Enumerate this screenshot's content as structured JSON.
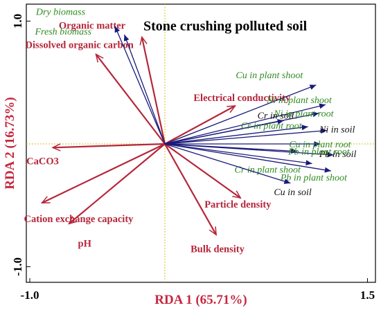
{
  "chart_data": {
    "type": "biplot",
    "title": "Stone crushing polluted soil",
    "xlabel": "RDA 1 (65.71%)",
    "ylabel": "RDA 2 (16.73%)",
    "xlim": [
      -1.0,
      1.5
    ],
    "ylim": [
      -1.0,
      1.0
    ],
    "x_ticks": [
      -1.0,
      1.5
    ],
    "y_ticks": [
      1.0,
      -1.0
    ],
    "colors": {
      "environment": "#b5263a",
      "response_arrow": "#1a1a7a",
      "response_label_green": "#2e8b22",
      "response_label_black": "#111111",
      "zero_line": "#d4c21a",
      "axis_label": "#c62840"
    },
    "environment_vectors": [
      {
        "name": "Organic matter",
        "x": -0.17,
        "y": 0.87
      },
      {
        "name": "Dissolved organic carbon",
        "x": -0.51,
        "y": 0.73
      },
      {
        "name": "Electrical conductivity",
        "x": 0.52,
        "y": 0.31
      },
      {
        "name": "CaCO3",
        "x": -0.83,
        "y": -0.03
      },
      {
        "name": "Cation exchange capacity",
        "x": -0.91,
        "y": -0.48
      },
      {
        "name": "pH",
        "x": -0.71,
        "y": -0.65
      },
      {
        "name": "Particle density",
        "x": 0.56,
        "y": -0.44
      },
      {
        "name": "Bulk density",
        "x": 0.38,
        "y": -0.74
      }
    ],
    "response_vectors": [
      {
        "name": "Dry biomass",
        "x": -0.37,
        "y": 0.96,
        "label_color": "green"
      },
      {
        "name": "Fresh biomass",
        "x": -0.3,
        "y": 0.89,
        "label_color": "green"
      },
      {
        "name": "Cu in plant shoot",
        "x": 1.12,
        "y": 0.48,
        "label_color": "green"
      },
      {
        "name": "Ni in plant shoot",
        "x": 1.19,
        "y": 0.32,
        "label_color": "green"
      },
      {
        "name": "Ni in plant root",
        "x": 1.14,
        "y": 0.25,
        "label_color": "green"
      },
      {
        "name": "Cr in soil",
        "x": 0.88,
        "y": 0.19,
        "label_color": "black"
      },
      {
        "name": "Cr in plant root",
        "x": 1.06,
        "y": 0.14,
        "label_color": "green"
      },
      {
        "name": "Ni in soil",
        "x": 1.2,
        "y": 0.11,
        "label_color": "black"
      },
      {
        "name": "Cu in plant root",
        "x": 1.15,
        "y": 0.0,
        "label_color": "green"
      },
      {
        "name": "Pb in soil",
        "x": 1.25,
        "y": -0.09,
        "label_color": "black"
      },
      {
        "name": "Pb in plant root",
        "x": 0.98,
        "y": -0.06,
        "label_color": "green"
      },
      {
        "name": "Cr in plant shoot",
        "x": 1.09,
        "y": -0.16,
        "label_color": "green"
      },
      {
        "name": "Pb in plant shoot",
        "x": 1.23,
        "y": -0.22,
        "label_color": "green"
      },
      {
        "name": "Cu in soil",
        "x": 0.93,
        "y": -0.32,
        "label_color": "black"
      }
    ]
  }
}
